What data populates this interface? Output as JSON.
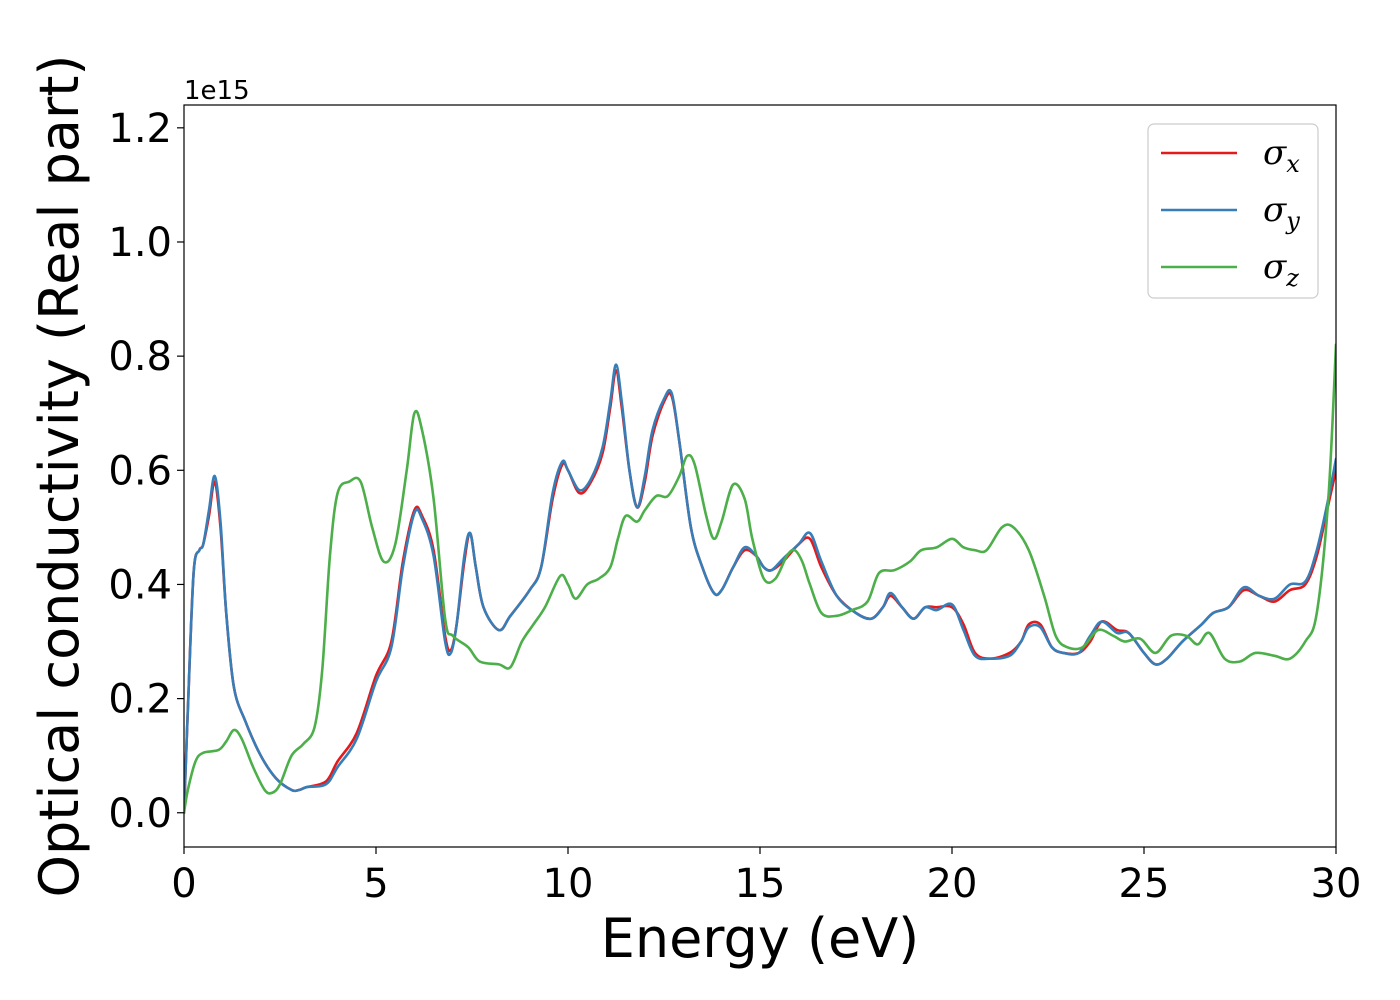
{
  "chart_data": {
    "type": "line",
    "xlabel": "Energy (eV)",
    "ylabel": "Optical conductivity (Real part)",
    "y_offset_label": "1e15",
    "xlim": [
      0,
      30
    ],
    "ylim": [
      -0.06,
      1.24
    ],
    "xticks": [
      0,
      5,
      10,
      15,
      20,
      25,
      30
    ],
    "yticks": [
      0.0,
      0.2,
      0.4,
      0.6,
      0.8,
      1.0,
      1.2
    ],
    "ytick_labels": [
      "0.0",
      "0.2",
      "0.4",
      "0.6",
      "0.8",
      "1.0",
      "1.2"
    ],
    "grid": false,
    "legend_position": "top-right",
    "series": [
      {
        "name": "σx",
        "legend_base": "σ",
        "legend_sub": "x",
        "color": "#e41a1c",
        "points": [
          [
            0,
            0.0
          ],
          [
            0.1,
            0.18
          ],
          [
            0.25,
            0.42
          ],
          [
            0.4,
            0.46
          ],
          [
            0.5,
            0.47
          ],
          [
            0.65,
            0.52
          ],
          [
            0.8,
            0.58
          ],
          [
            0.95,
            0.5
          ],
          [
            1.1,
            0.35
          ],
          [
            1.3,
            0.22
          ],
          [
            1.6,
            0.16
          ],
          [
            2.0,
            0.1
          ],
          [
            2.4,
            0.06
          ],
          [
            2.8,
            0.04
          ],
          [
            3.0,
            0.04
          ],
          [
            3.2,
            0.045
          ],
          [
            3.7,
            0.055
          ],
          [
            4.0,
            0.09
          ],
          [
            4.5,
            0.14
          ],
          [
            5.0,
            0.24
          ],
          [
            5.4,
            0.3
          ],
          [
            5.7,
            0.44
          ],
          [
            6.0,
            0.53
          ],
          [
            6.2,
            0.52
          ],
          [
            6.5,
            0.46
          ],
          [
            6.8,
            0.31
          ],
          [
            6.95,
            0.285
          ],
          [
            7.1,
            0.33
          ],
          [
            7.3,
            0.44
          ],
          [
            7.45,
            0.49
          ],
          [
            7.6,
            0.43
          ],
          [
            7.8,
            0.36
          ],
          [
            8.2,
            0.32
          ],
          [
            8.5,
            0.345
          ],
          [
            9.0,
            0.39
          ],
          [
            9.3,
            0.43
          ],
          [
            9.6,
            0.55
          ],
          [
            9.85,
            0.61
          ],
          [
            10.0,
            0.6
          ],
          [
            10.3,
            0.56
          ],
          [
            10.6,
            0.58
          ],
          [
            10.9,
            0.63
          ],
          [
            11.1,
            0.71
          ],
          [
            11.25,
            0.775
          ],
          [
            11.4,
            0.71
          ],
          [
            11.6,
            0.6
          ],
          [
            11.8,
            0.535
          ],
          [
            12.0,
            0.58
          ],
          [
            12.2,
            0.66
          ],
          [
            12.5,
            0.72
          ],
          [
            12.7,
            0.73
          ],
          [
            12.9,
            0.65
          ],
          [
            13.2,
            0.5
          ],
          [
            13.5,
            0.43
          ],
          [
            13.8,
            0.385
          ],
          [
            14.0,
            0.39
          ],
          [
            14.3,
            0.43
          ],
          [
            14.6,
            0.46
          ],
          [
            14.9,
            0.45
          ],
          [
            15.1,
            0.43
          ],
          [
            15.3,
            0.425
          ],
          [
            15.6,
            0.44
          ],
          [
            16.0,
            0.47
          ],
          [
            16.3,
            0.48
          ],
          [
            16.6,
            0.43
          ],
          [
            17.0,
            0.38
          ],
          [
            17.5,
            0.35
          ],
          [
            17.9,
            0.34
          ],
          [
            18.2,
            0.36
          ],
          [
            18.4,
            0.38
          ],
          [
            18.7,
            0.36
          ],
          [
            19.0,
            0.34
          ],
          [
            19.3,
            0.36
          ],
          [
            19.6,
            0.36
          ],
          [
            20.0,
            0.36
          ],
          [
            20.3,
            0.33
          ],
          [
            20.6,
            0.28
          ],
          [
            21.0,
            0.27
          ],
          [
            21.5,
            0.28
          ],
          [
            21.8,
            0.3
          ],
          [
            22.0,
            0.33
          ],
          [
            22.3,
            0.33
          ],
          [
            22.6,
            0.29
          ],
          [
            22.9,
            0.28
          ],
          [
            23.3,
            0.28
          ],
          [
            23.6,
            0.3
          ],
          [
            23.9,
            0.335
          ],
          [
            24.3,
            0.32
          ],
          [
            24.6,
            0.315
          ],
          [
            25.0,
            0.28
          ],
          [
            25.3,
            0.26
          ],
          [
            25.6,
            0.27
          ],
          [
            26.0,
            0.3
          ],
          [
            26.5,
            0.33
          ],
          [
            26.8,
            0.35
          ],
          [
            27.2,
            0.36
          ],
          [
            27.6,
            0.39
          ],
          [
            28.0,
            0.38
          ],
          [
            28.4,
            0.37
          ],
          [
            28.8,
            0.39
          ],
          [
            29.2,
            0.4
          ],
          [
            29.5,
            0.45
          ],
          [
            29.8,
            0.54
          ],
          [
            30.0,
            0.6
          ]
        ]
      },
      {
        "name": "σy",
        "legend_base": "σ",
        "legend_sub": "y",
        "color": "#377eb8",
        "points": [
          [
            0,
            0.0
          ],
          [
            0.1,
            0.18
          ],
          [
            0.25,
            0.42
          ],
          [
            0.4,
            0.46
          ],
          [
            0.5,
            0.47
          ],
          [
            0.65,
            0.53
          ],
          [
            0.8,
            0.59
          ],
          [
            0.95,
            0.51
          ],
          [
            1.1,
            0.35
          ],
          [
            1.3,
            0.22
          ],
          [
            1.6,
            0.16
          ],
          [
            2.0,
            0.1
          ],
          [
            2.4,
            0.06
          ],
          [
            2.8,
            0.04
          ],
          [
            3.0,
            0.04
          ],
          [
            3.2,
            0.045
          ],
          [
            3.7,
            0.05
          ],
          [
            4.0,
            0.08
          ],
          [
            4.5,
            0.13
          ],
          [
            5.0,
            0.23
          ],
          [
            5.4,
            0.29
          ],
          [
            5.7,
            0.43
          ],
          [
            6.0,
            0.525
          ],
          [
            6.2,
            0.515
          ],
          [
            6.5,
            0.45
          ],
          [
            6.8,
            0.3
          ],
          [
            6.95,
            0.28
          ],
          [
            7.1,
            0.33
          ],
          [
            7.3,
            0.45
          ],
          [
            7.45,
            0.49
          ],
          [
            7.6,
            0.43
          ],
          [
            7.8,
            0.36
          ],
          [
            8.2,
            0.32
          ],
          [
            8.5,
            0.345
          ],
          [
            9.0,
            0.39
          ],
          [
            9.3,
            0.43
          ],
          [
            9.6,
            0.56
          ],
          [
            9.85,
            0.615
          ],
          [
            10.0,
            0.6
          ],
          [
            10.3,
            0.565
          ],
          [
            10.6,
            0.585
          ],
          [
            10.9,
            0.64
          ],
          [
            11.1,
            0.72
          ],
          [
            11.25,
            0.785
          ],
          [
            11.4,
            0.72
          ],
          [
            11.6,
            0.6
          ],
          [
            11.8,
            0.535
          ],
          [
            12.0,
            0.59
          ],
          [
            12.2,
            0.67
          ],
          [
            12.5,
            0.725
          ],
          [
            12.7,
            0.735
          ],
          [
            12.9,
            0.65
          ],
          [
            13.2,
            0.5
          ],
          [
            13.5,
            0.43
          ],
          [
            13.8,
            0.385
          ],
          [
            14.0,
            0.39
          ],
          [
            14.3,
            0.43
          ],
          [
            14.6,
            0.465
          ],
          [
            14.9,
            0.45
          ],
          [
            15.1,
            0.43
          ],
          [
            15.3,
            0.425
          ],
          [
            15.6,
            0.445
          ],
          [
            16.0,
            0.47
          ],
          [
            16.3,
            0.49
          ],
          [
            16.6,
            0.44
          ],
          [
            17.0,
            0.38
          ],
          [
            17.5,
            0.35
          ],
          [
            17.9,
            0.34
          ],
          [
            18.2,
            0.36
          ],
          [
            18.4,
            0.385
          ],
          [
            18.7,
            0.36
          ],
          [
            19.0,
            0.34
          ],
          [
            19.3,
            0.36
          ],
          [
            19.6,
            0.355
          ],
          [
            20.0,
            0.365
          ],
          [
            20.3,
            0.32
          ],
          [
            20.6,
            0.275
          ],
          [
            21.0,
            0.27
          ],
          [
            21.5,
            0.275
          ],
          [
            21.8,
            0.3
          ],
          [
            22.0,
            0.325
          ],
          [
            22.3,
            0.325
          ],
          [
            22.6,
            0.29
          ],
          [
            22.9,
            0.28
          ],
          [
            23.3,
            0.28
          ],
          [
            23.6,
            0.31
          ],
          [
            23.9,
            0.335
          ],
          [
            24.3,
            0.315
          ],
          [
            24.6,
            0.315
          ],
          [
            25.0,
            0.28
          ],
          [
            25.3,
            0.26
          ],
          [
            25.6,
            0.27
          ],
          [
            26.0,
            0.3
          ],
          [
            26.5,
            0.33
          ],
          [
            26.8,
            0.35
          ],
          [
            27.2,
            0.36
          ],
          [
            27.6,
            0.395
          ],
          [
            28.0,
            0.38
          ],
          [
            28.4,
            0.375
          ],
          [
            28.8,
            0.4
          ],
          [
            29.2,
            0.405
          ],
          [
            29.5,
            0.46
          ],
          [
            29.8,
            0.55
          ],
          [
            30.0,
            0.62
          ]
        ]
      },
      {
        "name": "σz",
        "legend_base": "σ",
        "legend_sub": "z",
        "color": "#4daf4a",
        "points": [
          [
            0,
            0.0
          ],
          [
            0.1,
            0.04
          ],
          [
            0.3,
            0.09
          ],
          [
            0.5,
            0.105
          ],
          [
            0.9,
            0.11
          ],
          [
            1.1,
            0.125
          ],
          [
            1.3,
            0.145
          ],
          [
            1.5,
            0.13
          ],
          [
            1.8,
            0.08
          ],
          [
            2.1,
            0.04
          ],
          [
            2.3,
            0.035
          ],
          [
            2.5,
            0.05
          ],
          [
            2.8,
            0.1
          ],
          [
            3.1,
            0.12
          ],
          [
            3.4,
            0.15
          ],
          [
            3.6,
            0.25
          ],
          [
            3.8,
            0.45
          ],
          [
            4.0,
            0.56
          ],
          [
            4.3,
            0.58
          ],
          [
            4.6,
            0.58
          ],
          [
            4.9,
            0.5
          ],
          [
            5.2,
            0.44
          ],
          [
            5.5,
            0.47
          ],
          [
            5.8,
            0.6
          ],
          [
            6.0,
            0.7
          ],
          [
            6.2,
            0.67
          ],
          [
            6.5,
            0.55
          ],
          [
            6.8,
            0.34
          ],
          [
            7.0,
            0.31
          ],
          [
            7.4,
            0.29
          ],
          [
            7.7,
            0.265
          ],
          [
            8.2,
            0.26
          ],
          [
            8.5,
            0.255
          ],
          [
            8.8,
            0.3
          ],
          [
            9.1,
            0.33
          ],
          [
            9.4,
            0.36
          ],
          [
            9.8,
            0.415
          ],
          [
            10.0,
            0.4
          ],
          [
            10.2,
            0.375
          ],
          [
            10.5,
            0.4
          ],
          [
            10.8,
            0.41
          ],
          [
            11.1,
            0.43
          ],
          [
            11.3,
            0.48
          ],
          [
            11.5,
            0.52
          ],
          [
            11.8,
            0.51
          ],
          [
            12.0,
            0.53
          ],
          [
            12.3,
            0.555
          ],
          [
            12.6,
            0.555
          ],
          [
            12.9,
            0.59
          ],
          [
            13.1,
            0.625
          ],
          [
            13.3,
            0.61
          ],
          [
            13.6,
            0.52
          ],
          [
            13.8,
            0.48
          ],
          [
            14.0,
            0.51
          ],
          [
            14.3,
            0.575
          ],
          [
            14.6,
            0.55
          ],
          [
            14.8,
            0.48
          ],
          [
            15.1,
            0.41
          ],
          [
            15.4,
            0.41
          ],
          [
            15.7,
            0.45
          ],
          [
            15.9,
            0.46
          ],
          [
            16.1,
            0.44
          ],
          [
            16.3,
            0.4
          ],
          [
            16.6,
            0.35
          ],
          [
            17.0,
            0.345
          ],
          [
            17.4,
            0.355
          ],
          [
            17.8,
            0.37
          ],
          [
            18.1,
            0.42
          ],
          [
            18.5,
            0.425
          ],
          [
            18.9,
            0.44
          ],
          [
            19.2,
            0.46
          ],
          [
            19.6,
            0.465
          ],
          [
            20.0,
            0.48
          ],
          [
            20.3,
            0.465
          ],
          [
            20.6,
            0.46
          ],
          [
            20.9,
            0.46
          ],
          [
            21.3,
            0.5
          ],
          [
            21.6,
            0.5
          ],
          [
            22.0,
            0.46
          ],
          [
            22.4,
            0.38
          ],
          [
            22.7,
            0.31
          ],
          [
            23.0,
            0.29
          ],
          [
            23.4,
            0.29
          ],
          [
            23.8,
            0.32
          ],
          [
            24.2,
            0.31
          ],
          [
            24.5,
            0.3
          ],
          [
            24.9,
            0.305
          ],
          [
            25.3,
            0.28
          ],
          [
            25.7,
            0.31
          ],
          [
            26.1,
            0.31
          ],
          [
            26.4,
            0.295
          ],
          [
            26.7,
            0.315
          ],
          [
            27.1,
            0.27
          ],
          [
            27.5,
            0.265
          ],
          [
            27.9,
            0.28
          ],
          [
            28.4,
            0.275
          ],
          [
            28.8,
            0.27
          ],
          [
            29.2,
            0.3
          ],
          [
            29.5,
            0.35
          ],
          [
            29.8,
            0.55
          ],
          [
            30.0,
            0.82
          ]
        ]
      }
    ]
  }
}
